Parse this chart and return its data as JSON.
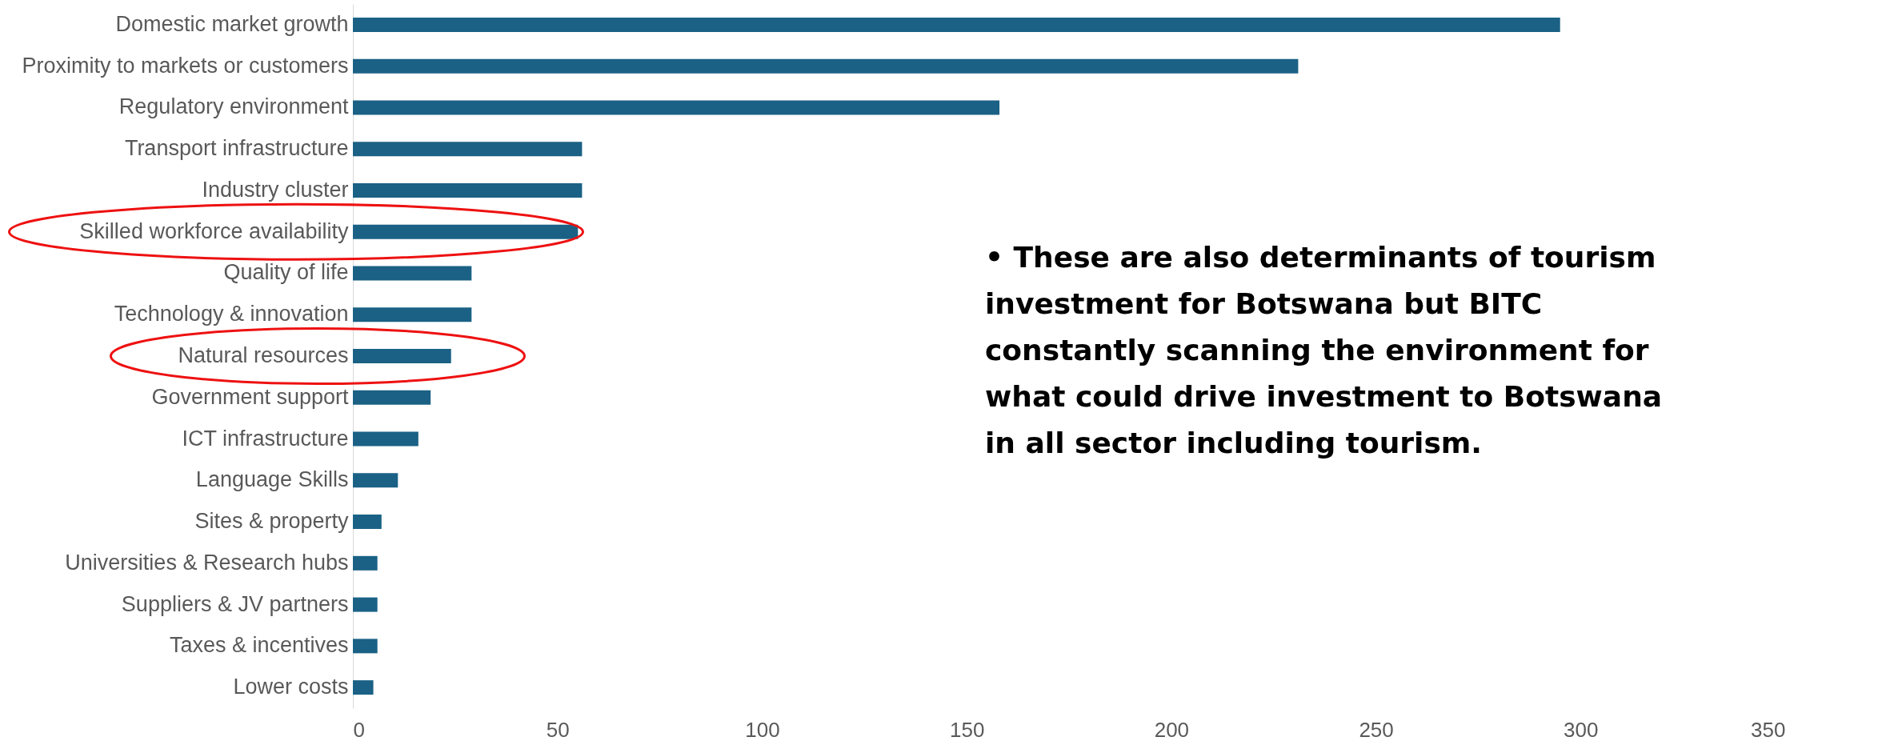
{
  "chart_data": {
    "type": "bar",
    "orientation": "horizontal",
    "categories": [
      "Domestic market growth",
      "Proximity to markets or customers",
      "Regulatory environment",
      "Transport infrastructure",
      "Industry cluster",
      "Skilled workforce availability",
      "Quality of life",
      "Technology & innovation",
      "Natural resources",
      "Government support",
      "ICT infrastructure",
      "Language Skills",
      "Sites & property",
      "Universities & Research hubs",
      "Suppliers & JV partners",
      "Taxes & incentives",
      "Lower costs"
    ],
    "values": [
      295,
      231,
      158,
      56,
      56,
      55,
      29,
      29,
      24,
      19,
      16,
      11,
      7,
      6,
      6,
      6,
      5
    ],
    "color": "#1a6185",
    "xlim": [
      0,
      350
    ],
    "xticks": [
      0,
      50,
      100,
      150,
      200,
      250,
      300,
      350
    ],
    "grid": false,
    "annotations": [
      "• These are also determinants of tourism investment for Botswana but BITC constantly scanning the environment for what could drive investment to Botswana in all sector including tourism."
    ]
  }
}
